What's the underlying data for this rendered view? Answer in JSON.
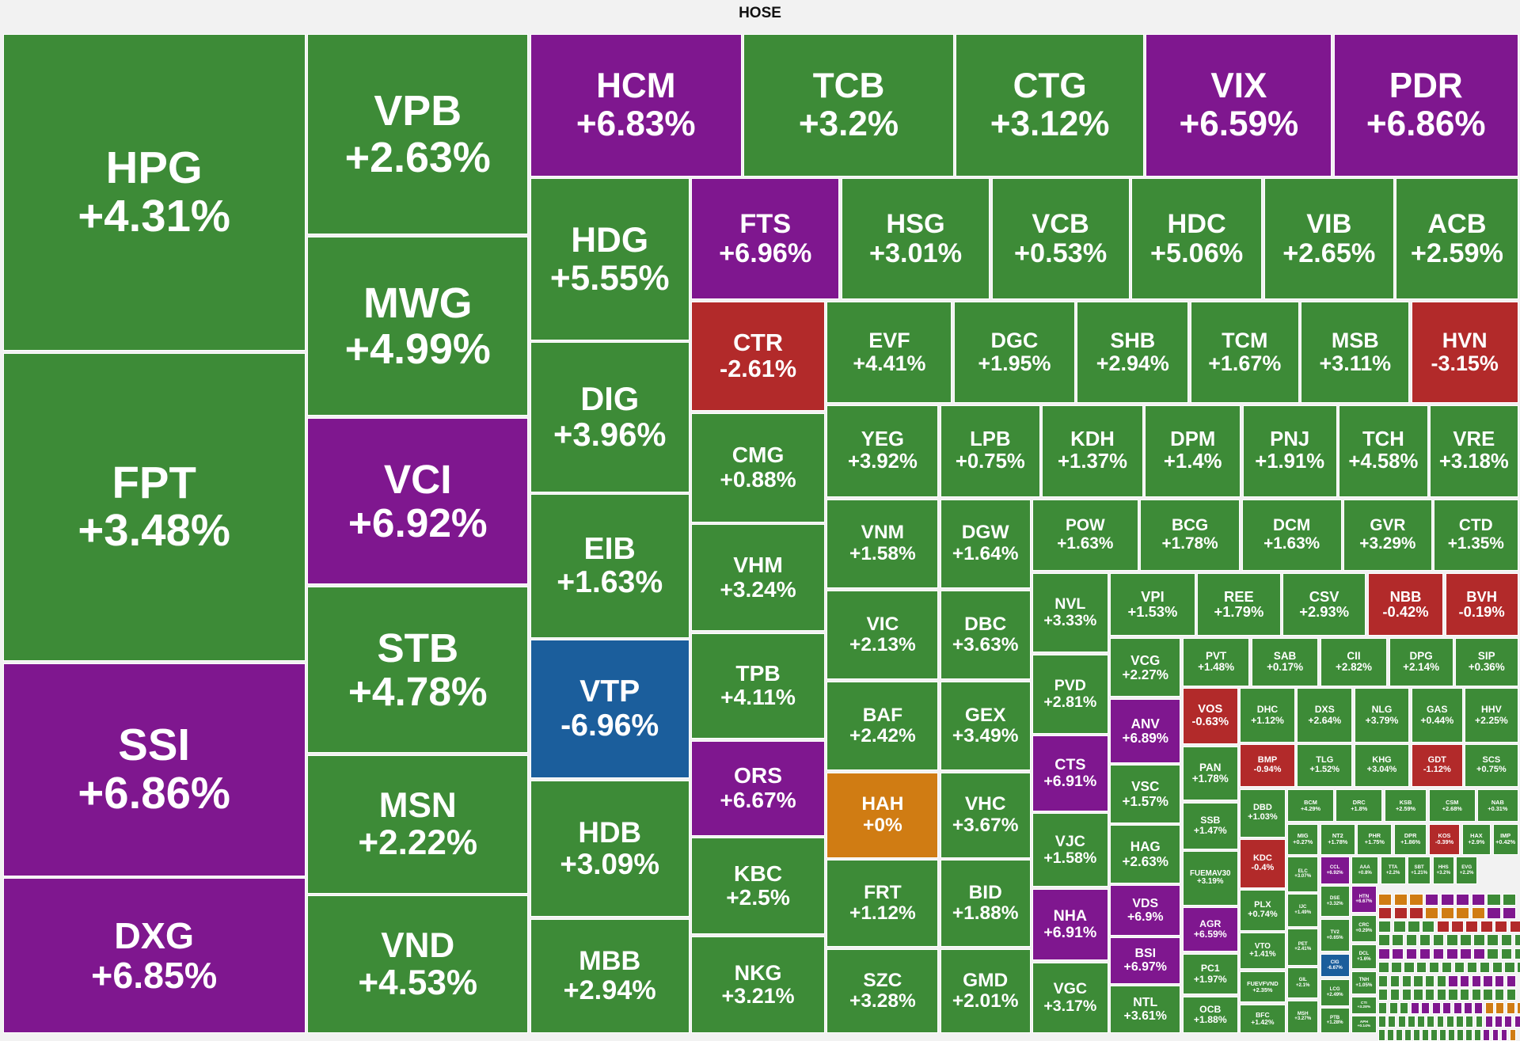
{
  "chart_data": {
    "type": "treemap",
    "title": "HOSE",
    "colors": {
      "up": "#3d8b37",
      "down": "#b22a2a",
      "ceiling": "#7f178f",
      "floor": "#1b5e9c",
      "unchanged": "#d07c13"
    },
    "tiles": [
      {
        "ticker": "HPG",
        "change": "+4.31%"
      },
      {
        "ticker": "FPT",
        "change": "+3.48%"
      },
      {
        "ticker": "SSI",
        "change": "+6.86%"
      },
      {
        "ticker": "DXG",
        "change": "+6.85%"
      },
      {
        "ticker": "VPB",
        "change": "+2.63%"
      },
      {
        "ticker": "MWG",
        "change": "+4.99%"
      },
      {
        "ticker": "VCI",
        "change": "+6.92%"
      },
      {
        "ticker": "STB",
        "change": "+4.78%"
      },
      {
        "ticker": "MSN",
        "change": "+2.22%"
      },
      {
        "ticker": "VND",
        "change": "+4.53%"
      },
      {
        "ticker": "HCM",
        "change": "+6.83%"
      },
      {
        "ticker": "TCB",
        "change": "+3.2%"
      },
      {
        "ticker": "CTG",
        "change": "+3.12%"
      },
      {
        "ticker": "VIX",
        "change": "+6.59%"
      },
      {
        "ticker": "PDR",
        "change": "+6.86%"
      },
      {
        "ticker": "HDG",
        "change": "+5.55%"
      },
      {
        "ticker": "DIG",
        "change": "+3.96%"
      },
      {
        "ticker": "EIB",
        "change": "+1.63%"
      },
      {
        "ticker": "VTP",
        "change": "-6.96%"
      },
      {
        "ticker": "HDB",
        "change": "+3.09%"
      },
      {
        "ticker": "MBB",
        "change": "+2.94%"
      },
      {
        "ticker": "FTS",
        "change": "+6.96%"
      },
      {
        "ticker": "HSG",
        "change": "+3.01%"
      },
      {
        "ticker": "VCB",
        "change": "+0.53%"
      },
      {
        "ticker": "HDC",
        "change": "+5.06%"
      },
      {
        "ticker": "VIB",
        "change": "+2.65%"
      },
      {
        "ticker": "ACB",
        "change": "+2.59%"
      },
      {
        "ticker": "CTR",
        "change": "-2.61%"
      },
      {
        "ticker": "EVF",
        "change": "+4.41%"
      },
      {
        "ticker": "DGC",
        "change": "+1.95%"
      },
      {
        "ticker": "SHB",
        "change": "+2.94%"
      },
      {
        "ticker": "TCM",
        "change": "+1.67%"
      },
      {
        "ticker": "MSB",
        "change": "+3.11%"
      },
      {
        "ticker": "HVN",
        "change": "-3.15%"
      },
      {
        "ticker": "CMG",
        "change": "+0.88%"
      },
      {
        "ticker": "VHM",
        "change": "+3.24%"
      },
      {
        "ticker": "TPB",
        "change": "+4.11%"
      },
      {
        "ticker": "ORS",
        "change": "+6.67%"
      },
      {
        "ticker": "KBC",
        "change": "+2.5%"
      },
      {
        "ticker": "NKG",
        "change": "+3.21%"
      },
      {
        "ticker": "YEG",
        "change": "+3.92%"
      },
      {
        "ticker": "LPB",
        "change": "+0.75%"
      },
      {
        "ticker": "KDH",
        "change": "+1.37%"
      },
      {
        "ticker": "DPM",
        "change": "+1.4%"
      },
      {
        "ticker": "PNJ",
        "change": "+1.91%"
      },
      {
        "ticker": "TCH",
        "change": "+4.58%"
      },
      {
        "ticker": "VRE",
        "change": "+3.18%"
      },
      {
        "ticker": "VNM",
        "change": "+1.58%"
      },
      {
        "ticker": "DGW",
        "change": "+1.64%"
      },
      {
        "ticker": "VIC",
        "change": "+2.13%"
      },
      {
        "ticker": "DBC",
        "change": "+3.63%"
      },
      {
        "ticker": "BAF",
        "change": "+2.42%"
      },
      {
        "ticker": "GEX",
        "change": "+3.49%"
      },
      {
        "ticker": "HAH",
        "change": "+0%"
      },
      {
        "ticker": "VHC",
        "change": "+3.67%"
      },
      {
        "ticker": "FRT",
        "change": "+1.12%"
      },
      {
        "ticker": "BID",
        "change": "+1.88%"
      },
      {
        "ticker": "SZC",
        "change": "+3.28%"
      },
      {
        "ticker": "GMD",
        "change": "+2.01%"
      },
      {
        "ticker": "POW",
        "change": "+1.63%"
      },
      {
        "ticker": "BCG",
        "change": "+1.78%"
      },
      {
        "ticker": "DCM",
        "change": "+1.63%"
      },
      {
        "ticker": "GVR",
        "change": "+3.29%"
      },
      {
        "ticker": "CTD",
        "change": "+1.35%"
      },
      {
        "ticker": "NVL",
        "change": "+3.33%"
      },
      {
        "ticker": "VPI",
        "change": "+1.53%"
      },
      {
        "ticker": "REE",
        "change": "+1.79%"
      },
      {
        "ticker": "CSV",
        "change": "+2.93%"
      },
      {
        "ticker": "NBB",
        "change": "-0.42%"
      },
      {
        "ticker": "BVH",
        "change": "-0.19%"
      },
      {
        "ticker": "PVD",
        "change": "+2.81%"
      },
      {
        "ticker": "CTS",
        "change": "+6.91%"
      },
      {
        "ticker": "VJC",
        "change": "+1.58%"
      },
      {
        "ticker": "NHA",
        "change": "+6.91%"
      },
      {
        "ticker": "VGC",
        "change": "+3.17%"
      },
      {
        "ticker": "VCG",
        "change": "+2.27%"
      },
      {
        "ticker": "ANV",
        "change": "+6.89%"
      },
      {
        "ticker": "VSC",
        "change": "+1.57%"
      },
      {
        "ticker": "HAG",
        "change": "+2.63%"
      },
      {
        "ticker": "VDS",
        "change": "+6.9%"
      },
      {
        "ticker": "BSI",
        "change": "+6.97%"
      },
      {
        "ticker": "NTL",
        "change": "+3.61%"
      },
      {
        "ticker": "PVT",
        "change": "+1.48%"
      },
      {
        "ticker": "SAB",
        "change": "+0.17%"
      },
      {
        "ticker": "CII",
        "change": "+2.82%"
      },
      {
        "ticker": "DPG",
        "change": "+2.14%"
      },
      {
        "ticker": "SIP",
        "change": "+0.36%"
      },
      {
        "ticker": "VOS",
        "change": "-0.63%"
      },
      {
        "ticker": "DHC",
        "change": "+1.12%"
      },
      {
        "ticker": "DXS",
        "change": "+2.64%"
      },
      {
        "ticker": "NLG",
        "change": "+3.79%"
      },
      {
        "ticker": "GAS",
        "change": "+0.44%"
      },
      {
        "ticker": "HHV",
        "change": "+2.25%"
      },
      {
        "ticker": "PAN",
        "change": "+1.78%"
      },
      {
        "ticker": "BMP",
        "change": "-0.94%"
      },
      {
        "ticker": "TLG",
        "change": "+1.52%"
      },
      {
        "ticker": "KHG",
        "change": "+3.04%"
      },
      {
        "ticker": "GDT",
        "change": "-1.12%"
      },
      {
        "ticker": "SCS",
        "change": "+0.75%"
      },
      {
        "ticker": "SSB",
        "change": "+1.47%"
      },
      {
        "ticker": "FUEMAV30",
        "change": "+3.19%"
      },
      {
        "ticker": "AGR",
        "change": "+6.59%"
      },
      {
        "ticker": "PC1",
        "change": "+1.97%"
      },
      {
        "ticker": "OCB",
        "change": "+1.88%"
      },
      {
        "ticker": "DBD",
        "change": "+1.03%"
      },
      {
        "ticker": "KDC",
        "change": "-0.4%"
      },
      {
        "ticker": "PLX",
        "change": "+0.74%"
      },
      {
        "ticker": "VTO",
        "change": "+1.41%"
      },
      {
        "ticker": "FUEVFVND",
        "change": "+2.35%"
      },
      {
        "ticker": "BFC",
        "change": "+1.42%"
      },
      {
        "ticker": "BCM",
        "change": "+4.29%"
      },
      {
        "ticker": "DRC",
        "change": "+1.8%"
      },
      {
        "ticker": "KSB",
        "change": "+2.59%"
      },
      {
        "ticker": "CSM",
        "change": "+2.68%"
      },
      {
        "ticker": "NAB",
        "change": "+0.31%"
      },
      {
        "ticker": "MIG",
        "change": "+0.27%"
      },
      {
        "ticker": "NT2",
        "change": "+1.78%"
      },
      {
        "ticker": "PHR",
        "change": "+1.75%"
      },
      {
        "ticker": "DPR",
        "change": "+1.86%"
      },
      {
        "ticker": "KOS",
        "change": "-0.39%"
      },
      {
        "ticker": "HAX",
        "change": "+2.9%"
      },
      {
        "ticker": "IMP",
        "change": "+0.42%"
      },
      {
        "ticker": "ELC",
        "change": "+3.07%"
      },
      {
        "ticker": "CCL",
        "change": "+6.92%"
      },
      {
        "ticker": "AAA",
        "change": "+0.8%"
      },
      {
        "ticker": "TTA",
        "change": "+2.2%"
      },
      {
        "ticker": "SBT",
        "change": "+1.21%"
      },
      {
        "ticker": "HHS",
        "change": "+3.2%"
      },
      {
        "ticker": "EVG",
        "change": "+2.2%"
      },
      {
        "ticker": "IJC",
        "change": "+1.49%"
      },
      {
        "ticker": "DSE",
        "change": "+3.32%"
      },
      {
        "ticker": "HTN",
        "change": "+6.67%"
      },
      {
        "ticker": "CRC",
        "change": "+0.29%"
      },
      {
        "ticker": "TV2",
        "change": "+0.65%"
      },
      {
        "ticker": "DCL",
        "change": "+1.6%"
      },
      {
        "ticker": "PET",
        "change": "+2.41%"
      },
      {
        "ticker": "CIG",
        "change": "-6.67%"
      },
      {
        "ticker": "TNH",
        "change": "+1.05%"
      },
      {
        "ticker": "GIL",
        "change": "+2.1%"
      },
      {
        "ticker": "LCG",
        "change": "+2.49%"
      },
      {
        "ticker": "CTI",
        "change": "+3.28%"
      },
      {
        "ticker": "MSH",
        "change": "+3.27%"
      },
      {
        "ticker": "PTB",
        "change": "+1.28%"
      },
      {
        "ticker": "APH",
        "change": "+0.14%"
      }
    ]
  }
}
